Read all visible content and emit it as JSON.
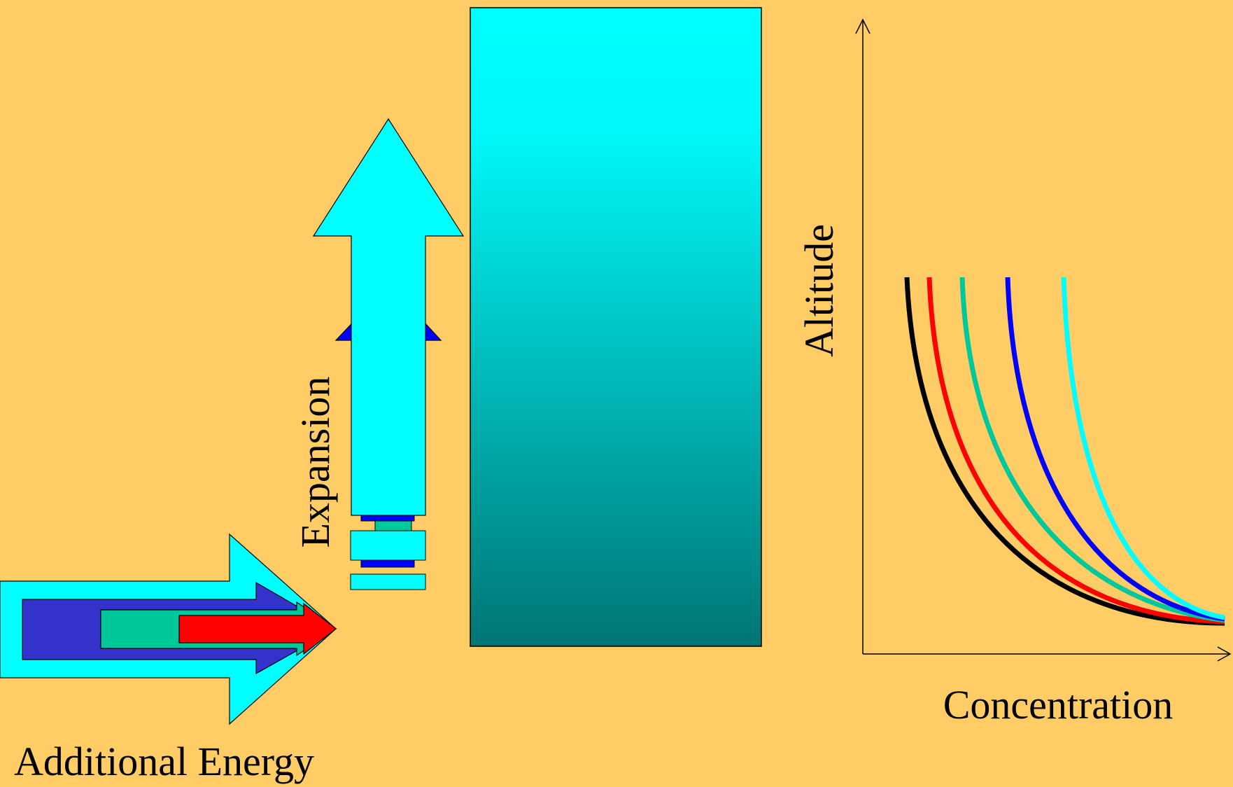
{
  "colors": {
    "background": "#FFCC66",
    "cyan": "#00FFFF",
    "blue": "#3333CC",
    "deep_blue": "#0000FF",
    "green": "#00C89A",
    "red": "#FF0000",
    "column_top": "#00FFFF",
    "column_bottom": "#007575"
  },
  "labels": {
    "additional_energy": "Additional Energy",
    "expansion": "Expansion",
    "altitude": "Altitude",
    "concentration": "Concentration"
  },
  "chart_data": {
    "type": "line",
    "xlabel": "Concentration",
    "ylabel": "Altitude",
    "series": [
      {
        "color": "#000000",
        "shape": "exponential-decay"
      },
      {
        "color": "#FF0000",
        "shape": "exponential-decay"
      },
      {
        "color": "#00C89A",
        "shape": "exponential-decay"
      },
      {
        "color": "#0000FF",
        "shape": "exponential-decay"
      },
      {
        "color": "#00FFFF",
        "shape": "exponential-decay"
      }
    ]
  }
}
